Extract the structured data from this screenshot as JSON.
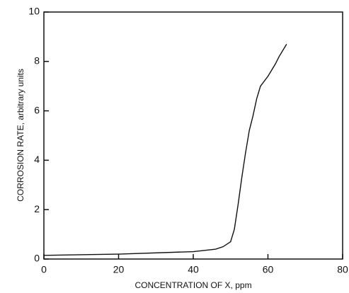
{
  "chart_data": {
    "type": "line",
    "xlabel": "CONCENTRATION OF X, ppm",
    "ylabel": "CORROSION RATE, arbitrary units",
    "x": [
      0,
      20,
      40,
      46,
      48,
      50,
      51,
      52,
      53,
      54,
      55,
      56,
      57,
      58,
      60,
      62,
      63,
      65
    ],
    "series": [
      {
        "color": "#111111",
        "values": [
          0.15,
          0.2,
          0.3,
          0.4,
          0.5,
          0.7,
          1.2,
          2.2,
          3.3,
          4.3,
          5.2,
          5.8,
          6.5,
          7.0,
          7.4,
          7.9,
          8.2,
          8.7
        ]
      }
    ],
    "xlim": [
      0,
      80
    ],
    "xticks": [
      0,
      20,
      40,
      60,
      80
    ],
    "ylim": [
      0,
      10
    ],
    "yticks": [
      0,
      2,
      4,
      6,
      8,
      10
    ]
  }
}
